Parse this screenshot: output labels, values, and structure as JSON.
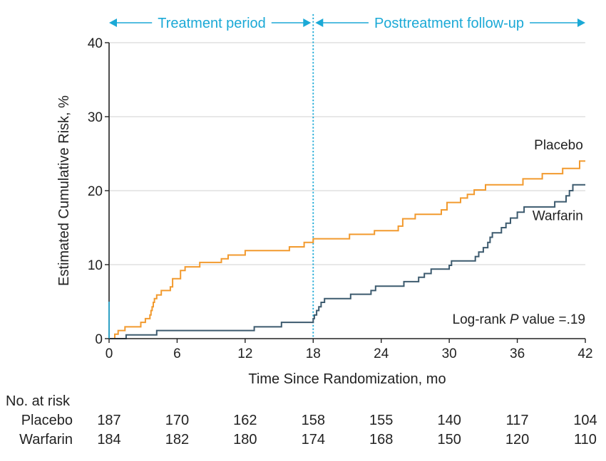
{
  "chart_data": {
    "type": "line",
    "step": true,
    "title": "",
    "xlabel": "Time Since Randomization, mo",
    "ylabel": "Estimated Cumulative Risk, %",
    "xlim": [
      0,
      42
    ],
    "ylim": [
      0,
      40
    ],
    "x_ticks": [
      0,
      6,
      12,
      18,
      24,
      30,
      36,
      42
    ],
    "y_ticks": [
      0,
      10,
      20,
      30,
      40
    ],
    "grid": "horizontal",
    "series": [
      {
        "name": "Placebo",
        "color": "#f29a2e",
        "points": [
          [
            0,
            0
          ],
          [
            0.5,
            0
          ],
          [
            0.5,
            0.6
          ],
          [
            0.8,
            0.6
          ],
          [
            0.8,
            1.1
          ],
          [
            1.4,
            1.1
          ],
          [
            1.4,
            1.6
          ],
          [
            2.8,
            1.6
          ],
          [
            2.8,
            2.2
          ],
          [
            3.2,
            2.2
          ],
          [
            3.2,
            2.7
          ],
          [
            3.6,
            2.7
          ],
          [
            3.6,
            3.2
          ],
          [
            3.7,
            3.2
          ],
          [
            3.7,
            3.8
          ],
          [
            3.8,
            3.8
          ],
          [
            3.8,
            4.3
          ],
          [
            3.9,
            4.3
          ],
          [
            3.9,
            4.9
          ],
          [
            4.0,
            4.9
          ],
          [
            4.0,
            5.4
          ],
          [
            4.2,
            5.4
          ],
          [
            4.2,
            5.9
          ],
          [
            4.6,
            5.9
          ],
          [
            4.6,
            6.5
          ],
          [
            5.4,
            6.5
          ],
          [
            5.4,
            7.0
          ],
          [
            5.6,
            7.0
          ],
          [
            5.6,
            8.1
          ],
          [
            6.3,
            8.1
          ],
          [
            6.3,
            9.2
          ],
          [
            6.7,
            9.2
          ],
          [
            6.7,
            9.7
          ],
          [
            8.0,
            9.7
          ],
          [
            8.0,
            10.3
          ],
          [
            9.9,
            10.3
          ],
          [
            9.9,
            10.8
          ],
          [
            10.5,
            10.8
          ],
          [
            10.5,
            11.3
          ],
          [
            12.0,
            11.3
          ],
          [
            12.0,
            11.9
          ],
          [
            15.9,
            11.9
          ],
          [
            15.9,
            12.4
          ],
          [
            17.2,
            12.4
          ],
          [
            17.2,
            13.0
          ],
          [
            18.0,
            13.0
          ],
          [
            18.0,
            13.5
          ],
          [
            21.2,
            13.5
          ],
          [
            21.2,
            14.1
          ],
          [
            23.4,
            14.1
          ],
          [
            23.4,
            14.6
          ],
          [
            25.5,
            14.6
          ],
          [
            25.5,
            15.2
          ],
          [
            25.9,
            15.2
          ],
          [
            25.9,
            16.2
          ],
          [
            27.0,
            16.2
          ],
          [
            27.0,
            16.8
          ],
          [
            29.3,
            16.8
          ],
          [
            29.3,
            17.4
          ],
          [
            29.8,
            17.4
          ],
          [
            29.8,
            18.4
          ],
          [
            31.0,
            18.4
          ],
          [
            31.0,
            19.0
          ],
          [
            31.6,
            19.0
          ],
          [
            31.6,
            19.5
          ],
          [
            32.2,
            19.5
          ],
          [
            32.2,
            20.1
          ],
          [
            33.2,
            20.1
          ],
          [
            33.2,
            20.8
          ],
          [
            36.5,
            20.8
          ],
          [
            36.5,
            21.6
          ],
          [
            38.2,
            21.6
          ],
          [
            38.2,
            22.3
          ],
          [
            40.0,
            22.3
          ],
          [
            40.0,
            23.0
          ],
          [
            41.5,
            23.0
          ],
          [
            41.5,
            24.0
          ],
          [
            42,
            24.0
          ]
        ]
      },
      {
        "name": "Warfarin",
        "color": "#3c5a6e",
        "points": [
          [
            0,
            0
          ],
          [
            1.5,
            0
          ],
          [
            1.5,
            0.5
          ],
          [
            4.2,
            0.5
          ],
          [
            4.2,
            1.1
          ],
          [
            12.8,
            1.1
          ],
          [
            12.8,
            1.6
          ],
          [
            15.2,
            1.6
          ],
          [
            15.2,
            2.2
          ],
          [
            18.0,
            2.2
          ],
          [
            18.0,
            2.7
          ],
          [
            18.1,
            2.7
          ],
          [
            18.1,
            3.2
          ],
          [
            18.3,
            3.2
          ],
          [
            18.3,
            3.8
          ],
          [
            18.5,
            3.8
          ],
          [
            18.5,
            4.3
          ],
          [
            18.7,
            4.3
          ],
          [
            18.7,
            4.9
          ],
          [
            19.0,
            4.9
          ],
          [
            19.0,
            5.4
          ],
          [
            21.3,
            5.4
          ],
          [
            21.3,
            6.0
          ],
          [
            23.1,
            6.0
          ],
          [
            23.1,
            6.5
          ],
          [
            23.5,
            6.5
          ],
          [
            23.5,
            7.1
          ],
          [
            26.0,
            7.1
          ],
          [
            26.0,
            7.7
          ],
          [
            27.3,
            7.7
          ],
          [
            27.3,
            8.3
          ],
          [
            27.8,
            8.3
          ],
          [
            27.8,
            8.8
          ],
          [
            28.4,
            8.8
          ],
          [
            28.4,
            9.4
          ],
          [
            30.0,
            9.4
          ],
          [
            30.0,
            9.9
          ],
          [
            30.2,
            9.9
          ],
          [
            30.2,
            10.5
          ],
          [
            32.3,
            10.5
          ],
          [
            32.3,
            11.1
          ],
          [
            32.6,
            11.1
          ],
          [
            32.6,
            11.7
          ],
          [
            33.0,
            11.7
          ],
          [
            33.0,
            12.3
          ],
          [
            33.4,
            12.3
          ],
          [
            33.4,
            13.0
          ],
          [
            33.6,
            13.0
          ],
          [
            33.6,
            13.7
          ],
          [
            33.8,
            13.7
          ],
          [
            33.8,
            14.3
          ],
          [
            34.6,
            14.3
          ],
          [
            34.6,
            15.0
          ],
          [
            35.0,
            15.0
          ],
          [
            35.0,
            15.6
          ],
          [
            35.4,
            15.6
          ],
          [
            35.4,
            16.3
          ],
          [
            36.0,
            16.3
          ],
          [
            36.0,
            17.1
          ],
          [
            36.6,
            17.1
          ],
          [
            36.6,
            17.8
          ],
          [
            39.3,
            17.8
          ],
          [
            39.3,
            18.5
          ],
          [
            40.3,
            18.5
          ],
          [
            40.3,
            19.3
          ],
          [
            40.6,
            19.3
          ],
          [
            40.6,
            20.0
          ],
          [
            40.9,
            20.0
          ],
          [
            40.9,
            20.8
          ],
          [
            42,
            20.8
          ]
        ]
      }
    ],
    "series_labels": {
      "placebo": {
        "text": "Placebo",
        "x": 41.8,
        "y": 25.6
      },
      "warfarin": {
        "text": "Warfarin",
        "x": 41.8,
        "y": 16.0
      }
    },
    "vertical_reference": {
      "x": 18,
      "color": "#1ba9d6"
    },
    "period_labels": {
      "treatment": "Treatment period",
      "posttreatment": "Posttreatment follow-up",
      "color": "#1ba9d6"
    },
    "annotation": {
      "prefix": "Log-rank ",
      "italic": "P",
      "suffix": " value =.19"
    },
    "risk_table": {
      "heading": "No. at risk",
      "times": [
        0,
        6,
        12,
        18,
        24,
        30,
        36,
        42
      ],
      "rows": [
        {
          "label": "Placebo",
          "values": [
            "187",
            "170",
            "162",
            "158",
            "155",
            "140",
            "117",
            "104"
          ]
        },
        {
          "label": "Warfarin",
          "values": [
            "184",
            "182",
            "180",
            "174",
            "168",
            "150",
            "120",
            "110"
          ]
        }
      ]
    }
  }
}
